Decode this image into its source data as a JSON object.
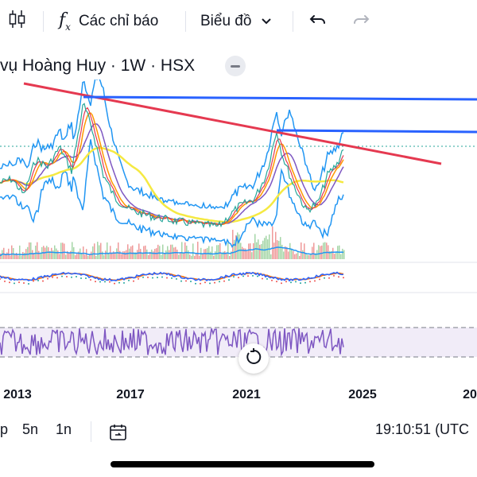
{
  "toolbar": {
    "indicators_label": "Các chỉ báo",
    "chart_type_label": "Biểu đồ"
  },
  "legend": {
    "title": "vụ Hoàng Huy · 1W · HSX"
  },
  "time_axis": [
    "2013",
    "2017",
    "2021",
    "2025",
    "20"
  ],
  "bottom": {
    "ranges": [
      "p",
      "5n",
      "1n"
    ],
    "clock": "19:10:51 (UTC"
  },
  "colors": {
    "trendline_red": "#e53950",
    "hline_blue": "#2962ff",
    "bollinger": "#2196f3",
    "rsi": "#7e57c2",
    "ma_yellow": "#f5e942"
  },
  "icons": [
    "candlestick-icon",
    "fx-icon",
    "chevron-down-icon",
    "undo-icon",
    "redo-icon",
    "minus-icon",
    "goto-date-icon",
    "reset-icon"
  ]
}
